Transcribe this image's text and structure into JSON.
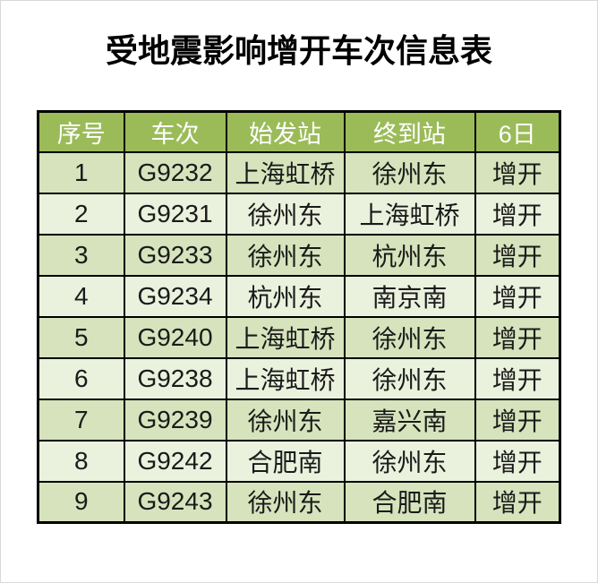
{
  "page": {
    "title": "受地震影响增开车次信息表"
  },
  "table": {
    "headers": [
      "序号",
      "车次",
      "始发站",
      "终到站",
      "6日"
    ],
    "column_keys": [
      "seq",
      "train-no",
      "origin-station",
      "terminal-station",
      "day6-status"
    ],
    "rows": [
      [
        "1",
        "G9232",
        "上海虹桥",
        "徐州东",
        "增开"
      ],
      [
        "2",
        "G9231",
        "徐州东",
        "上海虹桥",
        "增开"
      ],
      [
        "3",
        "G9233",
        "徐州东",
        "杭州东",
        "增开"
      ],
      [
        "4",
        "G9234",
        "杭州东",
        "南京南",
        "增开"
      ],
      [
        "5",
        "G9240",
        "上海虹桥",
        "徐州东",
        "增开"
      ],
      [
        "6",
        "G9238",
        "上海虹桥",
        "徐州东",
        "增开"
      ],
      [
        "7",
        "G9239",
        "徐州东",
        "嘉兴南",
        "增开"
      ],
      [
        "8",
        "G9242",
        "合肥南",
        "徐州东",
        "增开"
      ],
      [
        "9",
        "G9243",
        "徐州东",
        "合肥南",
        "增开"
      ]
    ],
    "colors": {
      "header_bg": "#9BBB59",
      "header_text": "#FFFFFF",
      "row_odd_bg": "#D6E3BC",
      "row_even_bg": "#EAF1DD",
      "cell_text": "#1A1A1A",
      "border": "#000000"
    }
  }
}
